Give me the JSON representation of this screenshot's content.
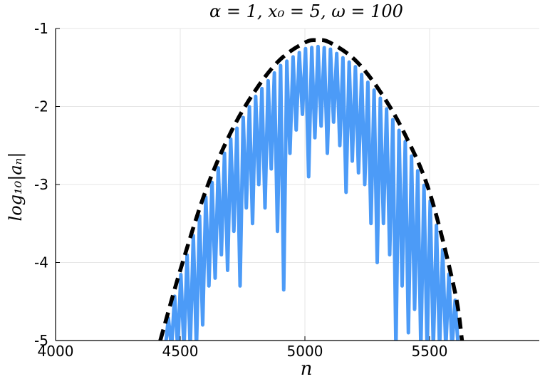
{
  "chart_data": {
    "type": "line",
    "title": "α = 1, x₀ = 5, ω = 100",
    "xlabel": "n",
    "ylabel": "log₁₀|aₙ|",
    "xlim": [
      4000,
      5940
    ],
    "ylim": [
      -5,
      -1
    ],
    "x_ticks": [
      4000,
      4500,
      5000,
      5500
    ],
    "y_ticks": [
      -5,
      -4,
      -3,
      -2,
      -1
    ],
    "x_tick_labels": [
      "4000",
      "4500",
      "5000",
      "5500"
    ],
    "y_tick_labels": [
      "-5",
      "-4",
      "-3",
      "-2",
      "-1"
    ],
    "grid": true,
    "legend": "none",
    "series": [
      {
        "style": "dashed",
        "color": "#000000",
        "x": [
          4420,
          4500,
          4600,
          4700,
          4800,
          4900,
          5000,
          5050,
          5100,
          5200,
          5300,
          5400,
          5500,
          5600,
          5630
        ],
        "y": [
          -5.0,
          -4.1,
          -3.1,
          -2.35,
          -1.8,
          -1.4,
          -1.18,
          -1.15,
          -1.18,
          -1.4,
          -1.8,
          -2.35,
          -3.1,
          -4.35,
          -5.0
        ]
      },
      {
        "style": "solid",
        "color": "#4c9bf7",
        "oscillating": true,
        "x_dips": [
          4440,
          4465,
          4490,
          4515,
          4540,
          4565,
          4590,
          4615,
          4640,
          4665,
          4690,
          4715,
          4740,
          4765,
          4790,
          4815,
          4840,
          4865,
          4890,
          4915,
          4940,
          4965,
          4990,
          5015,
          5040,
          5065,
          5090,
          5115,
          5140,
          5165,
          5190,
          5215,
          5240,
          5265,
          5290,
          5315,
          5340,
          5365,
          5390,
          5415,
          5440,
          5465,
          5490,
          5515,
          5540,
          5565,
          5590,
          5615
        ],
        "y_dips": [
          -5.0,
          -5.0,
          -5.0,
          -5.0,
          -5.0,
          -5.0,
          -4.8,
          -4.3,
          -4.2,
          -3.9,
          -4.1,
          -3.6,
          -4.3,
          -3.3,
          -3.5,
          -3.0,
          -3.3,
          -2.8,
          -3.6,
          -4.35,
          -2.6,
          -2.3,
          -2.1,
          -2.9,
          -2.4,
          -2.25,
          -2.6,
          -2.2,
          -2.5,
          -3.1,
          -2.7,
          -2.85,
          -3.0,
          -3.5,
          -4.0,
          -3.5,
          -3.9,
          -5.0,
          -4.3,
          -4.9,
          -4.6,
          -5.0,
          -5.0,
          -5.0,
          -5.0,
          -5.0,
          -5.0,
          -5.0
        ]
      }
    ]
  }
}
